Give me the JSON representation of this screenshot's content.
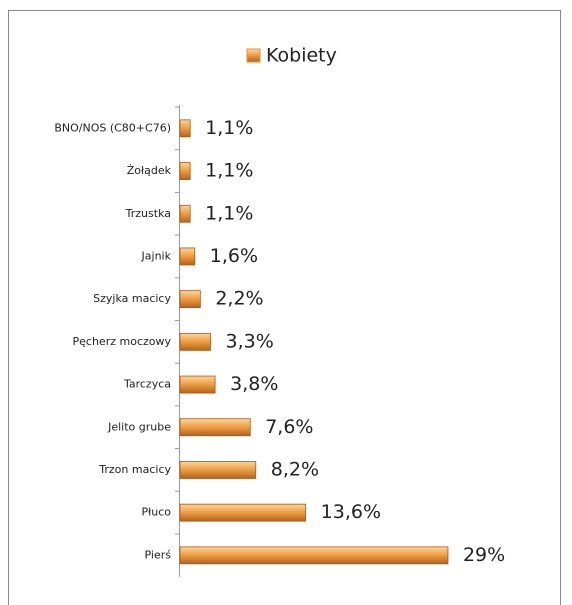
{
  "chart_data": {
    "type": "bar",
    "orientation": "horizontal",
    "categories": [
      "BNO/NOS (C80+C76)",
      "Żołądek",
      "Trzustka",
      "Jajnik",
      "Szyjka macicy",
      "Pęcherz moczowy",
      "Tarczyca",
      "Jelito grube",
      "Trzon macicy",
      "Płuco",
      "Pierś"
    ],
    "series": [
      {
        "name": "Kobiety",
        "color": "#e8912f",
        "values": [
          1.1,
          1.1,
          1.1,
          1.6,
          2.2,
          3.3,
          3.8,
          7.6,
          8.2,
          13.6,
          29
        ],
        "value_labels": [
          "1,1%",
          "1,1%",
          "1,1%",
          "1,6%",
          "2,2%",
          "3,3%",
          "3,8%",
          "7,6%",
          "8,2%",
          "13,6%",
          "29%"
        ]
      }
    ],
    "legend": "top"
  }
}
